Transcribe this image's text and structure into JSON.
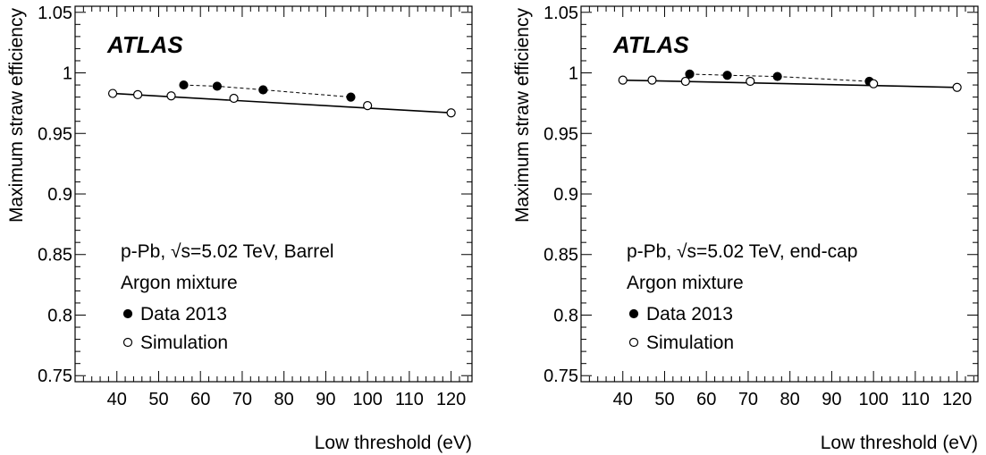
{
  "chart_data": [
    {
      "type": "scatter",
      "title": "",
      "xlabel": "Low threshold (eV)",
      "ylabel": "Maximum straw efficiency",
      "xlim": [
        30,
        125
      ],
      "ylim": [
        0.745,
        1.055
      ],
      "xticks": [
        "40",
        "50",
        "60",
        "70",
        "80",
        "90",
        "100",
        "110",
        "120"
      ],
      "yticks": [
        "0.75",
        "0.8",
        "0.85",
        "0.9",
        "0.95",
        "1",
        "1.05"
      ],
      "experiment_label": "ATLAS",
      "annotations": [
        "p-Pb, √s=5.02 TeV, Barrel",
        "Argon mixture"
      ],
      "legend": {
        "position": "bottom-left",
        "entries": [
          "Data 2013",
          "Simulation"
        ]
      },
      "series": [
        {
          "name": "Data 2013",
          "marker": "filled-circle",
          "line": "dashed",
          "x": [
            56,
            64,
            75,
            96
          ],
          "y": [
            0.99,
            0.989,
            0.986,
            0.98
          ]
        },
        {
          "name": "Simulation",
          "marker": "open-circle",
          "line": "none",
          "x": [
            39,
            45,
            53,
            68,
            100,
            120
          ],
          "y": [
            0.983,
            0.982,
            0.981,
            0.979,
            0.973,
            0.967
          ]
        }
      ],
      "fit_line": {
        "x": [
          39,
          120
        ],
        "y": [
          0.983,
          0.967
        ]
      }
    },
    {
      "type": "scatter",
      "title": "",
      "xlabel": "Low threshold (eV)",
      "ylabel": "Maximum straw efficiency",
      "xlim": [
        30,
        125
      ],
      "ylim": [
        0.745,
        1.055
      ],
      "xticks": [
        "40",
        "50",
        "60",
        "70",
        "80",
        "90",
        "100",
        "110",
        "120"
      ],
      "yticks": [
        "0.75",
        "0.8",
        "0.85",
        "0.9",
        "0.95",
        "1",
        "1.05"
      ],
      "experiment_label": "ATLAS",
      "annotations": [
        "p-Pb, √s=5.02 TeV, end-cap",
        "Argon mixture"
      ],
      "legend": {
        "position": "bottom-left",
        "entries": [
          "Data 2013",
          "Simulation"
        ]
      },
      "series": [
        {
          "name": "Data 2013",
          "marker": "filled-circle",
          "line": "dashed",
          "x": [
            56,
            65,
            77,
            99
          ],
          "y": [
            0.999,
            0.998,
            0.997,
            0.993
          ]
        },
        {
          "name": "Simulation",
          "marker": "open-circle",
          "line": "none",
          "x": [
            40,
            47,
            55,
            70.5,
            100,
            120
          ],
          "y": [
            0.994,
            0.994,
            0.993,
            0.993,
            0.991,
            0.988
          ]
        }
      ],
      "fit_line": {
        "x": [
          40,
          120
        ],
        "y": [
          0.994,
          0.988
        ]
      }
    }
  ]
}
